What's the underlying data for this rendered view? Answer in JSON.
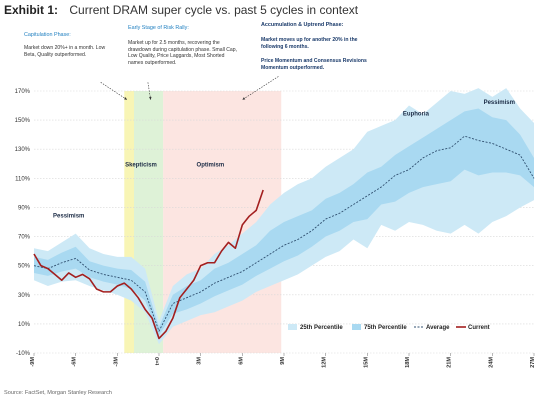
{
  "header": {
    "exhibit_label": "Exhibit 1:",
    "title": "Current DRAM super cycle vs. past 5 cycles in context"
  },
  "phases": {
    "capitulation": {
      "title": "Capitulation Phase:",
      "text": "Market down 20%+ in a month. Low Beta, Quality outperformed."
    },
    "early_stage": {
      "title": "Early Stage of Risk Rally:",
      "text": "Market up for 2.5 months, recovering the drawdown during capitulation phase. Small Cap, Low Quality, Price Laggards, Most Shorted names outperformed."
    },
    "accumulation": {
      "title": "Accumulation & Uptrend Phase:",
      "text1": "Market moves up for another 20% in the following 6 months.",
      "text2": "Price Momentum and Consensus Revisions Momentum outperformed."
    }
  },
  "source": "Source: FactSet, Morgan Stanley Research",
  "colors": {
    "band_p25": "#cde9f6",
    "band_p75": "#a9d9f1",
    "average": "#2f4f6f",
    "current": "#a31f1f",
    "zone_capitulation": "#f7f3a8",
    "zone_skepticism": "#d8f0d0",
    "zone_optimism": "#fbe0dc"
  },
  "chart_data": {
    "type": "line",
    "ylim": [
      -10,
      170
    ],
    "yticks": [
      "-10%",
      "10%",
      "30%",
      "50%",
      "70%",
      "90%",
      "110%",
      "130%",
      "150%",
      "170%"
    ],
    "ytick_values": [
      -10,
      10,
      30,
      50,
      70,
      90,
      110,
      130,
      150,
      170
    ],
    "xticks": [
      "-9M",
      "-6M",
      "-3M",
      "t=0",
      "3M",
      "6M",
      "9M",
      "12M",
      "15M",
      "18M",
      "21M",
      "24M",
      "27M"
    ],
    "xtick_values": [
      -9,
      -6,
      -3,
      0,
      3,
      6,
      9,
      12,
      15,
      18,
      21,
      24,
      27
    ],
    "xlim": [
      -9,
      27
    ],
    "zones": [
      {
        "name": "Capitulation",
        "from": -2.5,
        "to": -1.8
      },
      {
        "name": "Skepticism",
        "from": -1.8,
        "to": 0.3
      },
      {
        "name": "Optimism",
        "from": 0.3,
        "to": 8.8
      }
    ],
    "annotations": [
      {
        "text": "Pessimism",
        "x": -6.5,
        "y": 83
      },
      {
        "text": "Skepticism",
        "x": -1.3,
        "y": 118
      },
      {
        "text": "Optimism",
        "x": 3.7,
        "y": 118
      },
      {
        "text": "Euphoria",
        "x": 18.5,
        "y": 153
      },
      {
        "text": "Pessimism",
        "x": 24.5,
        "y": 161
      }
    ],
    "average": {
      "name": "Average",
      "x": [
        -9,
        -8,
        -7,
        -6,
        -5,
        -4,
        -3,
        -2,
        -1,
        0,
        1,
        2,
        3,
        4,
        5,
        6,
        7,
        8,
        9,
        10,
        11,
        12,
        13,
        14,
        15,
        16,
        17,
        18,
        19,
        20,
        21,
        22,
        23,
        24,
        25,
        26,
        27
      ],
      "y": [
        50,
        48,
        52,
        55,
        47,
        44,
        42,
        40,
        32,
        5,
        24,
        28,
        32,
        38,
        42,
        46,
        52,
        58,
        64,
        68,
        74,
        82,
        86,
        92,
        98,
        104,
        112,
        116,
        124,
        129,
        131,
        139,
        136,
        134,
        130,
        126,
        110
      ]
    },
    "p25": {
      "name": "25th Percentile",
      "x": [
        -9,
        -8,
        -7,
        -6,
        -5,
        -4,
        -3,
        -2,
        -1,
        0,
        1,
        2,
        3,
        4,
        5,
        6,
        7,
        8,
        9,
        10,
        11,
        12,
        13,
        14,
        15,
        16,
        17,
        18,
        19,
        20,
        21,
        22,
        23,
        24,
        25,
        26,
        27
      ],
      "lower": [
        40,
        36,
        39,
        40,
        36,
        33,
        30,
        26,
        18,
        -4,
        8,
        12,
        16,
        18,
        22,
        26,
        32,
        36,
        40,
        44,
        50,
        56,
        60,
        68,
        62,
        78,
        74,
        80,
        78,
        74,
        72,
        78,
        72,
        80,
        84,
        90,
        95
      ],
      "upper": [
        62,
        60,
        66,
        72,
        62,
        58,
        56,
        56,
        48,
        12,
        36,
        44,
        48,
        58,
        64,
        72,
        80,
        92,
        100,
        106,
        110,
        118,
        124,
        130,
        142,
        146,
        150,
        160,
        154,
        162,
        170,
        168,
        172,
        166,
        172,
        158,
        148
      ]
    },
    "p75": {
      "name": "75th Percentile",
      "x": [
        -9,
        -8,
        -7,
        -6,
        -5,
        -4,
        -3,
        -2,
        -1,
        0,
        1,
        2,
        3,
        4,
        5,
        6,
        7,
        8,
        9,
        10,
        11,
        12,
        13,
        14,
        15,
        16,
        17,
        18,
        19,
        20,
        21,
        22,
        23,
        24,
        25,
        26,
        27
      ],
      "lower": [
        45,
        43,
        46,
        48,
        42,
        39,
        37,
        34,
        26,
        2,
        17,
        20,
        24,
        29,
        33,
        37,
        43,
        48,
        53,
        57,
        63,
        70,
        74,
        80,
        82,
        92,
        94,
        100,
        104,
        106,
        108,
        116,
        112,
        114,
        114,
        112,
        104
      ],
      "upper": [
        56,
        54,
        59,
        63,
        53,
        50,
        48,
        47,
        39,
        8,
        30,
        36,
        40,
        48,
        52,
        58,
        64,
        74,
        80,
        84,
        88,
        96,
        100,
        106,
        114,
        118,
        126,
        132,
        138,
        144,
        150,
        156,
        158,
        152,
        150,
        140,
        124
      ]
    },
    "current": {
      "name": "Current",
      "x": [
        -9,
        -8.5,
        -8,
        -7.5,
        -7,
        -6.5,
        -6,
        -5.5,
        -5,
        -4.5,
        -4,
        -3.5,
        -3,
        -2.5,
        -2,
        -1.5,
        -1,
        -0.5,
        0,
        0.5,
        1,
        1.5,
        2,
        2.5,
        3,
        3.5,
        4,
        4.5,
        5,
        5.5,
        6,
        6.5,
        7,
        7.5
      ],
      "y": [
        58,
        50,
        48,
        44,
        40,
        45,
        42,
        44,
        41,
        34,
        32,
        32,
        36,
        38,
        34,
        28,
        20,
        14,
        0,
        5,
        14,
        28,
        34,
        40,
        50,
        52,
        52,
        60,
        66,
        62,
        78,
        84,
        88,
        102
      ]
    },
    "legend": [
      "25th Percentile",
      "75th Percentile",
      "Average",
      "Current"
    ],
    "legend_position": "bottom-right"
  }
}
